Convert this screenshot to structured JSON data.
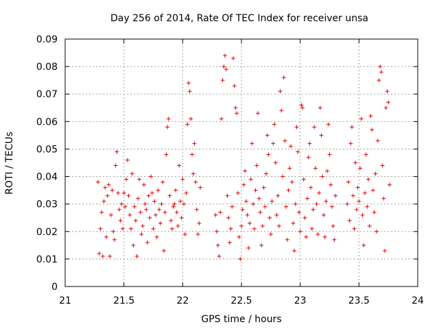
{
  "chart_data": {
    "type": "scatter",
    "title": "Day 256 of 2014, Rate Of TEC Index for receiver unsa",
    "xlabel": "GPS time / hours",
    "ylabel": "ROTI / TECUs",
    "xlim": [
      21,
      24
    ],
    "ylim": [
      0,
      0.09
    ],
    "xticks": [
      21,
      21.5,
      22,
      22.5,
      23,
      23.5,
      24
    ],
    "xtick_labels": [
      "21",
      "21.5",
      "22",
      "22.5",
      "23",
      "23.5",
      "24"
    ],
    "yticks": [
      0,
      0.01,
      0.02,
      0.03,
      0.04,
      0.05,
      0.06,
      0.07,
      0.08,
      0.09
    ],
    "ytick_labels": [
      "0",
      "0.01",
      "0.02",
      "0.03",
      "0.04",
      "0.05",
      "0.06",
      "0.07",
      "0.08",
      "0.09"
    ],
    "grid": true,
    "marker": "+",
    "series": [
      {
        "name": "ROTI",
        "color": "#e00000",
        "points": [
          [
            21.28,
            0.038
          ],
          [
            21.29,
            0.012
          ],
          [
            21.3,
            0.021
          ],
          [
            21.31,
            0.027
          ],
          [
            21.32,
            0.011
          ],
          [
            21.33,
            0.031
          ],
          [
            21.34,
            0.036
          ],
          [
            21.35,
            0.018
          ],
          [
            21.36,
            0.033
          ],
          [
            21.37,
            0.037
          ],
          [
            21.38,
            0.011
          ],
          [
            21.39,
            0.026
          ],
          [
            21.4,
            0.035
          ],
          [
            21.41,
            0.02
          ],
          [
            21.42,
            0.017
          ],
          [
            21.43,
            0.044
          ],
          [
            21.44,
            0.049
          ],
          [
            21.45,
            0.034
          ],
          [
            21.46,
            0.028
          ],
          [
            21.47,
            0.024
          ],
          [
            21.48,
            0.03
          ],
          [
            21.49,
            0.021
          ],
          [
            21.5,
            0.034
          ],
          [
            21.51,
            0.029
          ],
          [
            21.52,
            0.039
          ],
          [
            21.53,
            0.046
          ],
          [
            21.54,
            0.033
          ],
          [
            21.55,
            0.026
          ],
          [
            21.56,
            0.021
          ],
          [
            21.57,
            0.041
          ],
          [
            21.58,
            0.015
          ],
          [
            21.59,
            0.029
          ],
          [
            21.6,
            0.024
          ],
          [
            21.61,
            0.011
          ],
          [
            21.62,
            0.032
          ],
          [
            21.63,
            0.039
          ],
          [
            21.64,
            0.027
          ],
          [
            21.65,
            0.019
          ],
          [
            21.66,
            0.022
          ],
          [
            21.67,
            0.037
          ],
          [
            21.68,
            0.03
          ],
          [
            21.69,
            0.028
          ],
          [
            21.7,
            0.016
          ],
          [
            21.71,
            0.033
          ],
          [
            21.72,
            0.025
          ],
          [
            21.73,
            0.04
          ],
          [
            21.74,
            0.034
          ],
          [
            21.75,
            0.021
          ],
          [
            21.76,
            0.031
          ],
          [
            21.77,
            0.026
          ],
          [
            21.78,
            0.018
          ],
          [
            21.79,
            0.035
          ],
          [
            21.8,
            0.028
          ],
          [
            21.81,
            0.023
          ],
          [
            21.82,
            0.03
          ],
          [
            21.83,
            0.038
          ],
          [
            21.84,
            0.013
          ],
          [
            21.85,
            0.027
          ],
          [
            21.86,
            0.048
          ],
          [
            21.87,
            0.058
          ],
          [
            21.88,
            0.061
          ],
          [
            21.89,
            0.033
          ],
          [
            21.9,
            0.024
          ],
          [
            21.91,
            0.021
          ],
          [
            21.92,
            0.029
          ],
          [
            21.93,
            0.03
          ],
          [
            21.94,
            0.035
          ],
          [
            21.95,
            0.027
          ],
          [
            21.96,
            0.022
          ],
          [
            21.97,
            0.044
          ],
          [
            21.98,
            0.031
          ],
          [
            21.99,
            0.025
          ],
          [
            22.0,
            0.039
          ],
          [
            22.01,
            0.03
          ],
          [
            22.02,
            0.019
          ],
          [
            22.03,
            0.034
          ],
          [
            22.04,
            0.059
          ],
          [
            22.05,
            0.074
          ],
          [
            22.06,
            0.071
          ],
          [
            22.07,
            0.061
          ],
          [
            22.08,
            0.048
          ],
          [
            22.09,
            0.041
          ],
          [
            22.1,
            0.052
          ],
          [
            22.11,
            0.038
          ],
          [
            22.12,
            0.028
          ],
          [
            22.13,
            0.019
          ],
          [
            22.14,
            0.023
          ],
          [
            22.15,
            0.036
          ],
          [
            22.28,
            0.026
          ],
          [
            22.29,
            0.02
          ],
          [
            22.3,
            0.015
          ],
          [
            22.31,
            0.011
          ],
          [
            22.32,
            0.027
          ],
          [
            22.33,
            0.061
          ],
          [
            22.34,
            0.075
          ],
          [
            22.35,
            0.08
          ],
          [
            22.36,
            0.084
          ],
          [
            22.37,
            0.079
          ],
          [
            22.38,
            0.033
          ],
          [
            22.39,
            0.025
          ],
          [
            22.4,
            0.016
          ],
          [
            22.41,
            0.021
          ],
          [
            22.42,
            0.029
          ],
          [
            22.43,
            0.083
          ],
          [
            22.44,
            0.073
          ],
          [
            22.45,
            0.065
          ],
          [
            22.46,
            0.063
          ],
          [
            22.47,
            0.034
          ],
          [
            22.48,
            0.018
          ],
          [
            22.49,
            0.01
          ],
          [
            22.5,
            0.022
          ],
          [
            22.51,
            0.028
          ],
          [
            22.52,
            0.037
          ],
          [
            22.53,
            0.042
          ],
          [
            22.54,
            0.031
          ],
          [
            22.55,
            0.026
          ],
          [
            22.56,
            0.014
          ],
          [
            22.57,
            0.023
          ],
          [
            22.58,
            0.039
          ],
          [
            22.59,
            0.052
          ],
          [
            22.6,
            0.03
          ],
          [
            22.61,
            0.021
          ],
          [
            22.62,
            0.035
          ],
          [
            22.63,
            0.044
          ],
          [
            22.64,
            0.063
          ],
          [
            22.65,
            0.032
          ],
          [
            22.66,
            0.027
          ],
          [
            22.67,
            0.015
          ],
          [
            22.68,
            0.022
          ],
          [
            22.69,
            0.036
          ],
          [
            22.7,
            0.029
          ],
          [
            22.71,
            0.041
          ],
          [
            22.72,
            0.055
          ],
          [
            22.73,
            0.048
          ],
          [
            22.74,
            0.025
          ],
          [
            22.75,
            0.019
          ],
          [
            22.76,
            0.031
          ],
          [
            22.77,
            0.052
          ],
          [
            22.78,
            0.059
          ],
          [
            22.79,
            0.045
          ],
          [
            22.8,
            0.026
          ],
          [
            22.81,
            0.033
          ],
          [
            22.82,
            0.022
          ],
          [
            22.83,
            0.071
          ],
          [
            22.84,
            0.064
          ],
          [
            22.85,
            0.04
          ],
          [
            22.86,
            0.076
          ],
          [
            22.87,
            0.053
          ],
          [
            22.88,
            0.029
          ],
          [
            22.89,
            0.017
          ],
          [
            22.9,
            0.035
          ],
          [
            22.91,
            0.043
          ],
          [
            22.92,
            0.051
          ],
          [
            22.93,
            0.038
          ],
          [
            22.94,
            0.023
          ],
          [
            22.95,
            0.013
          ],
          [
            22.96,
            0.03
          ],
          [
            22.97,
            0.058
          ],
          [
            22.98,
            0.049
          ],
          [
            22.99,
            0.027
          ],
          [
            23.0,
            0.02
          ],
          [
            23.01,
            0.066
          ],
          [
            23.02,
            0.065
          ],
          [
            23.03,
            0.039
          ],
          [
            23.04,
            0.025
          ],
          [
            23.05,
            0.018
          ],
          [
            23.06,
            0.032
          ],
          [
            23.07,
            0.047
          ],
          [
            23.08,
            0.052
          ],
          [
            23.09,
            0.036
          ],
          [
            23.1,
            0.021
          ],
          [
            23.11,
            0.028
          ],
          [
            23.12,
            0.058
          ],
          [
            23.13,
            0.043
          ],
          [
            23.14,
            0.03
          ],
          [
            23.15,
            0.019
          ],
          [
            23.16,
            0.034
          ],
          [
            23.17,
            0.065
          ],
          [
            23.18,
            0.055
          ],
          [
            23.19,
            0.04
          ],
          [
            23.2,
            0.026
          ],
          [
            23.21,
            0.018
          ],
          [
            23.22,
            0.031
          ],
          [
            23.23,
            0.042
          ],
          [
            23.24,
            0.059
          ],
          [
            23.25,
            0.048
          ],
          [
            23.26,
            0.037
          ],
          [
            23.27,
            0.029
          ],
          [
            23.28,
            0.022
          ],
          [
            23.29,
            0.017
          ],
          [
            23.3,
            0.033
          ],
          [
            23.4,
            0.03
          ],
          [
            23.41,
            0.038
          ],
          [
            23.42,
            0.024
          ],
          [
            23.43,
            0.052
          ],
          [
            23.44,
            0.058
          ],
          [
            23.45,
            0.033
          ],
          [
            23.46,
            0.021
          ],
          [
            23.47,
            0.045
          ],
          [
            23.48,
            0.028
          ],
          [
            23.49,
            0.036
          ],
          [
            23.5,
            0.031
          ],
          [
            23.51,
            0.043
          ],
          [
            23.52,
            0.061
          ],
          [
            23.53,
            0.026
          ],
          [
            23.54,
            0.015
          ],
          [
            23.55,
            0.034
          ],
          [
            23.56,
            0.048
          ],
          [
            23.57,
            0.029
          ],
          [
            23.58,
            0.039
          ],
          [
            23.59,
            0.022
          ],
          [
            23.6,
            0.062
          ],
          [
            23.61,
            0.057
          ],
          [
            23.62,
            0.035
          ],
          [
            23.63,
            0.027
          ],
          [
            23.64,
            0.041
          ],
          [
            23.65,
            0.02
          ],
          [
            23.66,
            0.053
          ],
          [
            23.67,
            0.075
          ],
          [
            23.68,
            0.08
          ],
          [
            23.69,
            0.078
          ],
          [
            23.7,
            0.044
          ],
          [
            23.71,
            0.032
          ],
          [
            23.72,
            0.013
          ],
          [
            23.73,
            0.065
          ],
          [
            23.74,
            0.071
          ],
          [
            23.75,
            0.067
          ],
          [
            23.76,
            0.037
          ]
        ]
      }
    ]
  }
}
